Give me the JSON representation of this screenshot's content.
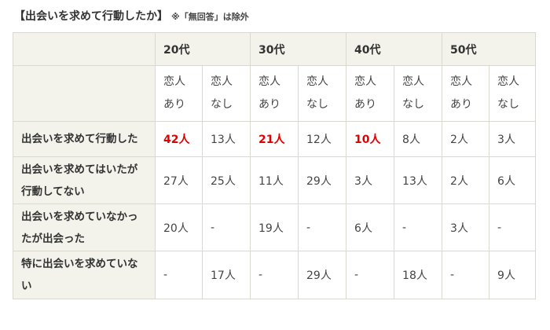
{
  "title": "【出会いを求めて行動したか】",
  "note": "※「無回答」は除外",
  "age_groups": [
    "20代",
    "30代",
    "40代",
    "50代"
  ],
  "sub_headers": [
    "恋人あり",
    "恋人なし",
    "恋人あり",
    "恋人なし",
    "恋人あり",
    "恋人なし",
    "恋人あり",
    "恋人なし"
  ],
  "rows": [
    {
      "label": "出会いを求めて行動した",
      "cells": [
        "42人",
        "13人",
        "21人",
        "12人",
        "10人",
        "8人",
        "2人",
        "3人"
      ],
      "highlight": [
        true,
        false,
        true,
        false,
        true,
        false,
        false,
        false
      ]
    },
    {
      "label": "出会いを求めてはいたが行動してない",
      "cells": [
        "27人",
        "25人",
        "11人",
        "29人",
        "3人",
        "13人",
        "2人",
        "6人"
      ],
      "highlight": [
        false,
        false,
        false,
        false,
        false,
        false,
        false,
        false
      ]
    },
    {
      "label": "出会いを求めていなかったが出会った",
      "cells": [
        "20人",
        "-",
        "19人",
        "-",
        "6人",
        "-",
        "3人",
        "-"
      ],
      "highlight": [
        false,
        false,
        false,
        false,
        false,
        false,
        false,
        false
      ]
    },
    {
      "label": "特に出会いを求めていない",
      "cells": [
        "-",
        "17人",
        "-",
        "29人",
        "-",
        "18人",
        "-",
        "9人"
      ],
      "highlight": [
        false,
        false,
        false,
        false,
        false,
        false,
        false,
        false
      ]
    }
  ],
  "colors": {
    "header_bg": "#f3f3ec",
    "border": "#d9d9d2",
    "highlight": "#e00000"
  }
}
